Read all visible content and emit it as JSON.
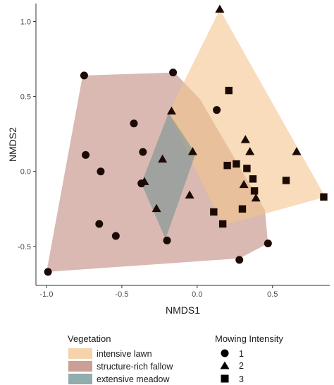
{
  "chart_data": {
    "type": "scatter",
    "xlabel": "NMDS1",
    "ylabel": "NMDS2",
    "xlim": [
      -1.07,
      0.88
    ],
    "ylim": [
      -0.76,
      1.12
    ],
    "xticks": [
      -1.0,
      -0.5,
      0.0,
      0.5
    ],
    "yticks": [
      -0.5,
      0.0,
      0.5,
      1.0
    ],
    "xtick_labels": [
      "-1.0",
      "-0.5",
      "0.0",
      "0.5"
    ],
    "ytick_labels": [
      "-0.5",
      "0.0",
      "0.5",
      "1.0"
    ],
    "grid": false,
    "legends": [
      {
        "title": "Vegetation",
        "placement": "bottom-left",
        "items": [
          {
            "label": "intensive lawn",
            "color": "#f3c48e"
          },
          {
            "label": "structure-rich fallow",
            "color": "#b97f72"
          },
          {
            "label": "extensive meadow",
            "color": "#6f9090"
          }
        ]
      },
      {
        "title": "Mowing Intensity",
        "placement": "bottom-right",
        "items": [
          {
            "label": "1",
            "shape": "circle"
          },
          {
            "label": "2",
            "shape": "triangle"
          },
          {
            "label": "3",
            "shape": "square"
          }
        ]
      }
    ],
    "hulls": [
      {
        "name": "structure-rich fallow",
        "color": "#b97f72",
        "opacity": 0.55,
        "points": [
          [
            -1.0,
            -0.67
          ],
          [
            -0.76,
            0.64
          ],
          [
            -0.15,
            0.66
          ],
          [
            0.02,
            0.48
          ],
          [
            0.45,
            -0.26
          ],
          [
            0.47,
            -0.48
          ],
          [
            0.28,
            -0.58
          ]
        ]
      },
      {
        "name": "intensive lawn",
        "color": "#f3c48e",
        "opacity": 0.6,
        "points": [
          [
            0.15,
            1.08
          ],
          [
            0.85,
            -0.17
          ],
          [
            0.17,
            -0.36
          ],
          [
            -0.19,
            0.39
          ]
        ]
      },
      {
        "name": "extensive meadow",
        "color": "#6f9090",
        "opacity": 0.55,
        "points": [
          [
            -0.19,
            0.39
          ],
          [
            -0.01,
            0.12
          ],
          [
            -0.21,
            -0.45
          ],
          [
            -0.37,
            -0.08
          ]
        ]
      }
    ],
    "series": [
      {
        "name": "1",
        "shape": "circle",
        "points": [
          [
            -0.99,
            -0.67
          ],
          [
            -0.75,
            0.64
          ],
          [
            -0.16,
            0.66
          ],
          [
            -0.42,
            0.32
          ],
          [
            -0.74,
            0.11
          ],
          [
            -0.64,
            0.0
          ],
          [
            -0.36,
            0.13
          ],
          [
            -0.37,
            -0.08
          ],
          [
            -0.65,
            -0.35
          ],
          [
            -0.54,
            -0.43
          ],
          [
            -0.2,
            -0.46
          ],
          [
            0.13,
            0.41
          ],
          [
            0.28,
            -0.59
          ],
          [
            0.47,
            -0.48
          ]
        ]
      },
      {
        "name": "2",
        "shape": "triangle",
        "points": [
          [
            0.15,
            1.08
          ],
          [
            -0.17,
            0.4
          ],
          [
            -0.23,
            0.08
          ],
          [
            -0.03,
            0.13
          ],
          [
            -0.35,
            -0.07
          ],
          [
            -0.27,
            -0.25
          ],
          [
            -0.05,
            -0.16
          ],
          [
            0.32,
            0.21
          ],
          [
            0.35,
            0.13
          ],
          [
            0.66,
            0.13
          ],
          [
            0.31,
            -0.09
          ],
          [
            0.39,
            -0.18
          ]
        ]
      },
      {
        "name": "3",
        "shape": "square",
        "points": [
          [
            0.21,
            0.54
          ],
          [
            0.2,
            0.04
          ],
          [
            0.26,
            0.05
          ],
          [
            0.33,
            0.02
          ],
          [
            0.37,
            -0.05
          ],
          [
            0.38,
            -0.13
          ],
          [
            0.59,
            -0.06
          ],
          [
            0.84,
            -0.17
          ],
          [
            0.11,
            -0.27
          ],
          [
            0.3,
            -0.25
          ],
          [
            0.17,
            -0.35
          ]
        ]
      }
    ]
  }
}
